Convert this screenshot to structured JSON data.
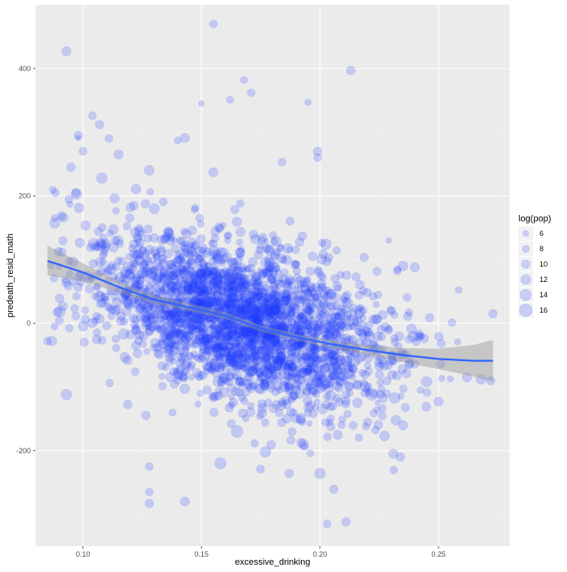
{
  "chart_data": {
    "type": "scatter",
    "title": "",
    "xlabel": "excessive_drinking",
    "ylabel": "predeath_resid_math",
    "xlim": [
      0.08,
      0.28
    ],
    "ylim": [
      -350,
      500
    ],
    "x_ticks": [
      0.1,
      0.15,
      0.2,
      0.25
    ],
    "x_tick_labels": [
      "0.10",
      "0.15",
      "0.20",
      "0.25"
    ],
    "y_ticks": [
      -200,
      0,
      200,
      400
    ],
    "y_tick_labels": [
      "-200",
      "0",
      "200",
      "400"
    ],
    "grid": true,
    "point_color": "#1f3dff",
    "point_opacity": 0.2,
    "smooth_color": "#3366ff",
    "ribbon_color": "#999999",
    "panel_background": "#ebebeb",
    "legend": {
      "title": "log(pop)",
      "placement": "right",
      "entries": [
        {
          "label": "6",
          "value": 6
        },
        {
          "label": "8",
          "value": 8
        },
        {
          "label": "10",
          "value": 10
        },
        {
          "label": "12",
          "value": 12
        },
        {
          "label": "14",
          "value": 14
        },
        {
          "label": "16",
          "value": 16
        }
      ]
    },
    "points": [
      {
        "x": 0.093,
        "y": 427,
        "s": 11
      },
      {
        "x": 0.155,
        "y": 470,
        "s": 9
      },
      {
        "x": 0.213,
        "y": 397,
        "s": 10
      },
      {
        "x": 0.168,
        "y": 382,
        "s": 8
      },
      {
        "x": 0.171,
        "y": 362,
        "s": 9
      },
      {
        "x": 0.162,
        "y": 351,
        "s": 8
      },
      {
        "x": 0.195,
        "y": 347,
        "s": 7
      },
      {
        "x": 0.15,
        "y": 345,
        "s": 6
      },
      {
        "x": 0.104,
        "y": 326,
        "s": 9
      },
      {
        "x": 0.107,
        "y": 312,
        "s": 10
      },
      {
        "x": 0.098,
        "y": 295,
        "s": 10
      },
      {
        "x": 0.111,
        "y": 290,
        "s": 9
      },
      {
        "x": 0.143,
        "y": 291,
        "s": 11
      },
      {
        "x": 0.14,
        "y": 287,
        "s": 8
      },
      {
        "x": 0.1,
        "y": 270,
        "s": 9
      },
      {
        "x": 0.115,
        "y": 265,
        "s": 11
      },
      {
        "x": 0.199,
        "y": 270,
        "s": 10
      },
      {
        "x": 0.199,
        "y": 260,
        "s": 9
      },
      {
        "x": 0.184,
        "y": 253,
        "s": 9
      },
      {
        "x": 0.095,
        "y": 245,
        "s": 10
      },
      {
        "x": 0.128,
        "y": 240,
        "s": 12
      },
      {
        "x": 0.155,
        "y": 237,
        "s": 11
      },
      {
        "x": 0.108,
        "y": 228,
        "s": 13
      },
      {
        "x": 0.097,
        "y": 205,
        "s": 10
      },
      {
        "x": 0.235,
        "y": 90,
        "s": 12
      },
      {
        "x": 0.24,
        "y": 88,
        "s": 11
      },
      {
        "x": 0.229,
        "y": 130,
        "s": 6
      },
      {
        "x": 0.273,
        "y": 15,
        "s": 10
      },
      {
        "x": 0.088,
        "y": -5,
        "s": 8
      },
      {
        "x": 0.085,
        "y": -28,
        "s": 9
      },
      {
        "x": 0.093,
        "y": -112,
        "s": 13
      },
      {
        "x": 0.128,
        "y": -225,
        "s": 9
      },
      {
        "x": 0.128,
        "y": -265,
        "s": 9
      },
      {
        "x": 0.128,
        "y": -283,
        "s": 10
      },
      {
        "x": 0.143,
        "y": -280,
        "s": 11
      },
      {
        "x": 0.203,
        "y": -315,
        "s": 9
      },
      {
        "x": 0.211,
        "y": -312,
        "s": 10
      },
      {
        "x": 0.2,
        "y": -236,
        "s": 13
      },
      {
        "x": 0.187,
        "y": -236,
        "s": 10
      },
      {
        "x": 0.231,
        "y": -205,
        "s": 11
      },
      {
        "x": 0.234,
        "y": -210,
        "s": 10
      },
      {
        "x": 0.25,
        "y": -123,
        "s": 11
      },
      {
        "x": 0.245,
        "y": -92,
        "s": 13
      },
      {
        "x": 0.268,
        "y": -88,
        "s": 12
      },
      {
        "x": 0.272,
        "y": -90,
        "s": 10
      },
      {
        "x": 0.262,
        "y": -85,
        "s": 11
      },
      {
        "x": 0.165,
        "y": -170,
        "s": 15
      },
      {
        "x": 0.158,
        "y": -220,
        "s": 14
      },
      {
        "x": 0.177,
        "y": -202,
        "s": 13
      },
      {
        "x": 0.193,
        "y": -190,
        "s": 12
      }
    ],
    "smooth": [
      {
        "x": 0.085,
        "y": 98,
        "lo": 75,
        "hi": 122
      },
      {
        "x": 0.1,
        "y": 80,
        "lo": 66,
        "hi": 94
      },
      {
        "x": 0.115,
        "y": 57,
        "lo": 48,
        "hi": 66
      },
      {
        "x": 0.13,
        "y": 37,
        "lo": 30,
        "hi": 44
      },
      {
        "x": 0.145,
        "y": 25,
        "lo": 19,
        "hi": 31
      },
      {
        "x": 0.16,
        "y": 12,
        "lo": 7,
        "hi": 17
      },
      {
        "x": 0.175,
        "y": -8,
        "lo": -13,
        "hi": -3
      },
      {
        "x": 0.19,
        "y": -22,
        "lo": -27,
        "hi": -17
      },
      {
        "x": 0.205,
        "y": -33,
        "lo": -39,
        "hi": -27
      },
      {
        "x": 0.22,
        "y": -42,
        "lo": -50,
        "hi": -34
      },
      {
        "x": 0.235,
        "y": -50,
        "lo": -61,
        "hi": -39
      },
      {
        "x": 0.25,
        "y": -56,
        "lo": -72,
        "hi": -40
      },
      {
        "x": 0.265,
        "y": -59,
        "lo": -84,
        "hi": -34
      },
      {
        "x": 0.273,
        "y": -59,
        "lo": -92,
        "hi": -26
      }
    ]
  }
}
